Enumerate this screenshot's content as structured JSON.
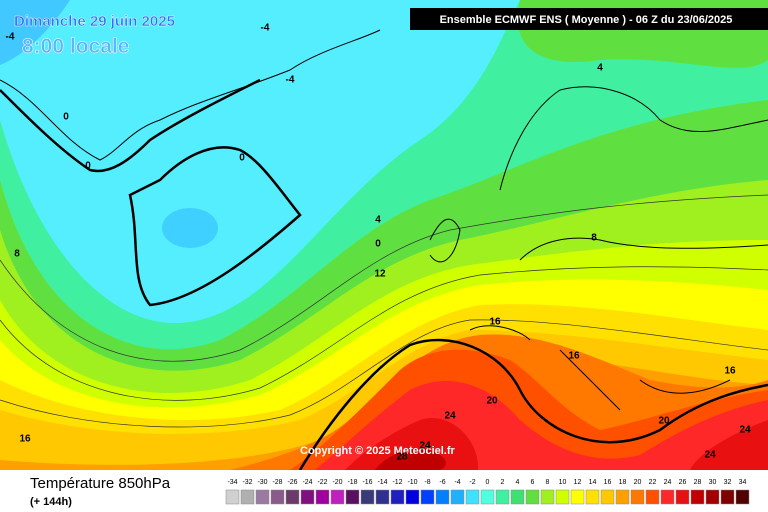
{
  "header": {
    "date": "Dimanche 29 juin 2025",
    "time": "8:00 locale",
    "model": "Ensemble ECMWF ENS ( Moyenne ) - 06 Z du 23/06/2025"
  },
  "map": {
    "contour_labels": [
      -4,
      -4,
      -4,
      4,
      0,
      0,
      0,
      8,
      4,
      0,
      12,
      16,
      16,
      16,
      20,
      24,
      20,
      24,
      24,
      24,
      28,
      8,
      16
    ],
    "copyright": "Copyright © 2025 Meteociel.fr"
  },
  "footer": {
    "title": "Température 850hPa",
    "subtitle": "(+ 144h)"
  },
  "legend": {
    "labels": [
      -34,
      -32,
      -30,
      -28,
      -26,
      -24,
      -22,
      -20,
      -18,
      -16,
      -14,
      -12,
      -10,
      -8,
      -6,
      -4,
      -2,
      0,
      2,
      4,
      6,
      8,
      10,
      12,
      14,
      16,
      18,
      20,
      22,
      24,
      26,
      28,
      30,
      32,
      34
    ],
    "colors": [
      "#d0d0d0",
      "#b0b0b0",
      "#9a7aa0",
      "#8a5a8a",
      "#6a3a6a",
      "#801080",
      "#a000a0",
      "#c020c0",
      "#5a1060",
      "#3a3a7a",
      "#303090",
      "#2020c0",
      "#0000e0",
      "#0040ff",
      "#0080ff",
      "#20b0ff",
      "#40e0ff",
      "#50ffe0",
      "#40f0a0",
      "#40e070",
      "#60e040",
      "#a0f020",
      "#d0ff00",
      "#ffff00",
      "#ffe000",
      "#ffc800",
      "#ffa000",
      "#ff7800",
      "#ff5000",
      "#ff2828",
      "#e81010",
      "#c00000",
      "#a00000",
      "#800000",
      "#500000"
    ]
  }
}
